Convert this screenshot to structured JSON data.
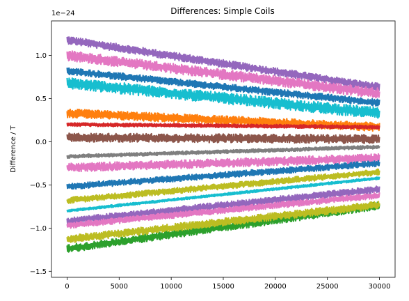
{
  "chart_data": {
    "type": "line",
    "title": "Differences: Simple Coils",
    "xlabel": "",
    "ylabel": "Difference / T",
    "y_offset_label": "1e−24",
    "xlim": [
      -1500,
      31500
    ],
    "ylim": [
      -1.57,
      1.4
    ],
    "x_ticks": [
      0,
      5000,
      10000,
      15000,
      20000,
      25000,
      30000
    ],
    "y_ticks": [
      -1.5,
      -1.0,
      -0.5,
      0.0,
      0.5,
      1.0
    ],
    "x_tick_labels": [
      "0",
      "5000",
      "10000",
      "15000",
      "20000",
      "25000",
      "30000"
    ],
    "y_tick_labels": [
      "−1.5",
      "−1.0",
      "−0.5",
      "0.0",
      "0.5",
      "1.0"
    ],
    "grid": false,
    "legend": "none",
    "x_range": [
      0,
      30000
    ],
    "series": [
      {
        "color": "#9467bd",
        "start": 1.18,
        "end": 0.63,
        "noise": 0.09
      },
      {
        "color": "#e377c2",
        "start": 1.0,
        "end": 0.56,
        "noise": 0.12
      },
      {
        "color": "#1f77b4",
        "start": 0.82,
        "end": 0.45,
        "noise": 0.08
      },
      {
        "color": "#17becf",
        "start": 0.68,
        "end": 0.33,
        "noise": 0.13
      },
      {
        "color": "#ff7f0e",
        "start": 0.33,
        "end": 0.17,
        "noise": 0.1
      },
      {
        "color": "#d62728",
        "start": 0.2,
        "end": 0.17,
        "noise": 0.04
      },
      {
        "color": "#8c564b",
        "start": 0.05,
        "end": 0.03,
        "noise": 0.1
      },
      {
        "color": "#7f7f7f",
        "start": -0.17,
        "end": -0.06,
        "noise": 0.04
      },
      {
        "color": "#e377c2",
        "start": -0.3,
        "end": -0.19,
        "noise": 0.1
      },
      {
        "color": "#1f77b4",
        "start": -0.52,
        "end": -0.25,
        "noise": 0.07
      },
      {
        "color": "#bcbd22",
        "start": -0.68,
        "end": -0.35,
        "noise": 0.07
      },
      {
        "color": "#17becf",
        "start": -0.8,
        "end": -0.42,
        "noise": 0.03
      },
      {
        "color": "#9467bd",
        "start": -0.92,
        "end": -0.55,
        "noise": 0.08
      },
      {
        "color": "#e377c2",
        "start": -0.97,
        "end": -0.62,
        "noise": 0.07
      },
      {
        "color": "#2ca02c",
        "start": -1.24,
        "end": -0.74,
        "noise": 0.09
      },
      {
        "color": "#bcbd22",
        "start": -1.13,
        "end": -0.73,
        "noise": 0.09
      }
    ]
  }
}
